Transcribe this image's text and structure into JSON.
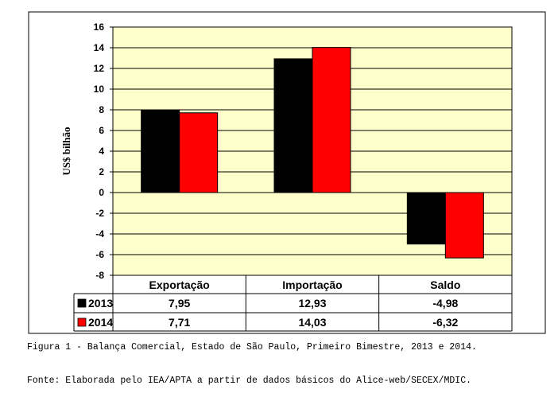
{
  "chart_data": {
    "type": "bar",
    "ylabel": "US$ bilhão",
    "ylim": [
      -8,
      16
    ],
    "yticks": [
      -8,
      -6,
      -4,
      -2,
      0,
      2,
      4,
      6,
      8,
      10,
      12,
      14,
      16
    ],
    "categories": [
      "Exportação",
      "Importação",
      "Saldo"
    ],
    "series": [
      {
        "name": "2013",
        "color": "#000000",
        "values": [
          7.95,
          12.93,
          -4.98
        ],
        "labels": [
          "7,95",
          "12,93",
          "-4,98"
        ]
      },
      {
        "name": "2014",
        "color": "#ff0000",
        "values": [
          7.71,
          14.03,
          -6.32
        ],
        "labels": [
          "7,71",
          "14,03",
          "-6,32"
        ]
      }
    ],
    "plot_background": "#ffffcc",
    "grid": true,
    "legend": "data-table"
  },
  "caption": "Figura 1 - Balança Comercial, Estado de São Paulo, Primeiro Bimestre, 2013 e 2014.",
  "source": "Fonte: Elaborada pelo IEA/APTA a partir de dados básicos do Alice-web/SECEX/MDIC."
}
